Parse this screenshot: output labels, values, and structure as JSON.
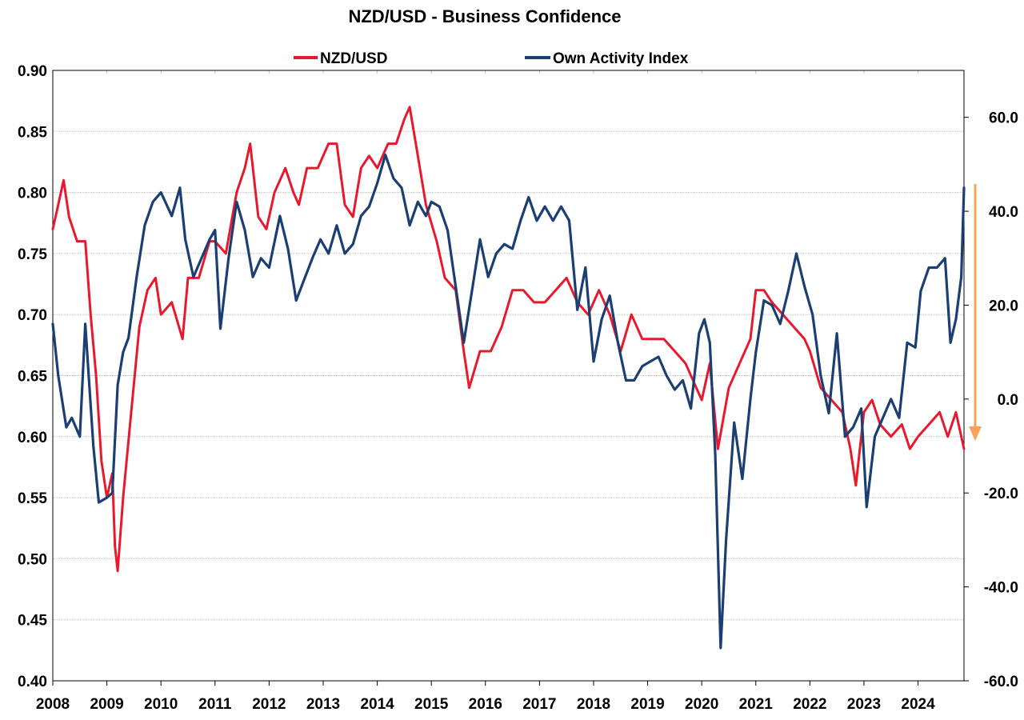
{
  "chart_data": {
    "type": "line",
    "title": "NZD/USD - Business Confidence",
    "xlabel": "",
    "ylabel_left": "",
    "ylabel_right": "",
    "x_range": [
      2008.0,
      2024.85
    ],
    "x_ticks": [
      "2008",
      "2009",
      "2010",
      "2011",
      "2012",
      "2013",
      "2014",
      "2015",
      "2016",
      "2017",
      "2018",
      "2019",
      "2020",
      "2021",
      "2022",
      "2023",
      "2024"
    ],
    "ylim_left": [
      0.4,
      0.9
    ],
    "yticks_left": [
      "0.90",
      "0.85",
      "0.80",
      "0.75",
      "0.70",
      "0.65",
      "0.60",
      "0.55",
      "0.50",
      "0.45",
      "0.40"
    ],
    "ylim_right": [
      -60.0,
      70.0
    ],
    "yticks_right": [
      "60.0",
      "40.0",
      "20.0",
      "0.0",
      "-20.0",
      "-40.0",
      "-60.0"
    ],
    "grid": true,
    "legend_position": "top",
    "legend": [
      "NZD/USD",
      "Own Activity Index"
    ],
    "annotation": "orange down arrow at right edge",
    "colors": {
      "nzd": "#e8192c",
      "activity": "#1b3f73",
      "arrow": "#f7a25b",
      "grid": "#bfbfbf"
    },
    "series": [
      {
        "name": "NZD/USD",
        "axis": "left",
        "x": [
          2008.0,
          2008.1,
          2008.2,
          2008.3,
          2008.45,
          2008.6,
          2008.7,
          2008.8,
          2008.9,
          2009.0,
          2009.1,
          2009.15,
          2009.2,
          2009.3,
          2009.45,
          2009.6,
          2009.75,
          2009.9,
          2010.0,
          2010.2,
          2010.4,
          2010.5,
          2010.7,
          2010.9,
          2011.0,
          2011.2,
          2011.4,
          2011.55,
          2011.65,
          2011.8,
          2011.95,
          2012.1,
          2012.3,
          2012.45,
          2012.55,
          2012.7,
          2012.9,
          2013.1,
          2013.25,
          2013.4,
          2013.55,
          2013.7,
          2013.85,
          2014.0,
          2014.2,
          2014.35,
          2014.5,
          2014.6,
          2014.75,
          2014.9,
          2015.1,
          2015.25,
          2015.45,
          2015.6,
          2015.7,
          2015.9,
          2016.1,
          2016.3,
          2016.5,
          2016.7,
          2016.9,
          2017.1,
          2017.3,
          2017.5,
          2017.7,
          2017.9,
          2018.1,
          2018.3,
          2018.5,
          2018.7,
          2018.9,
          2019.1,
          2019.3,
          2019.5,
          2019.7,
          2019.9,
          2020.0,
          2020.15,
          2020.3,
          2020.5,
          2020.7,
          2020.9,
          2021.0,
          2021.15,
          2021.3,
          2021.5,
          2021.7,
          2021.9,
          2022.0,
          2022.2,
          2022.4,
          2022.6,
          2022.75,
          2022.85,
          2023.0,
          2023.15,
          2023.3,
          2023.5,
          2023.7,
          2023.85,
          2024.0,
          2024.2,
          2024.4,
          2024.55,
          2024.7,
          2024.85
        ],
        "values": [
          0.77,
          0.79,
          0.81,
          0.78,
          0.76,
          0.76,
          0.7,
          0.65,
          0.58,
          0.55,
          0.57,
          0.51,
          0.49,
          0.55,
          0.62,
          0.69,
          0.72,
          0.73,
          0.7,
          0.71,
          0.68,
          0.73,
          0.73,
          0.76,
          0.76,
          0.75,
          0.8,
          0.82,
          0.84,
          0.78,
          0.77,
          0.8,
          0.82,
          0.8,
          0.79,
          0.82,
          0.82,
          0.84,
          0.84,
          0.79,
          0.78,
          0.82,
          0.83,
          0.82,
          0.84,
          0.84,
          0.86,
          0.87,
          0.83,
          0.79,
          0.76,
          0.73,
          0.72,
          0.67,
          0.64,
          0.67,
          0.67,
          0.69,
          0.72,
          0.72,
          0.71,
          0.71,
          0.72,
          0.73,
          0.71,
          0.7,
          0.72,
          0.7,
          0.67,
          0.7,
          0.68,
          0.68,
          0.68,
          0.67,
          0.66,
          0.64,
          0.63,
          0.66,
          0.59,
          0.64,
          0.66,
          0.68,
          0.72,
          0.72,
          0.71,
          0.7,
          0.69,
          0.68,
          0.67,
          0.64,
          0.63,
          0.62,
          0.59,
          0.56,
          0.62,
          0.63,
          0.61,
          0.6,
          0.61,
          0.59,
          0.6,
          0.61,
          0.62,
          0.6,
          0.62,
          0.59
        ]
      },
      {
        "name": "Own Activity Index",
        "axis": "right",
        "x": [
          2008.0,
          2008.1,
          2008.25,
          2008.35,
          2008.5,
          2008.6,
          2008.75,
          2008.85,
          2009.0,
          2009.1,
          2009.2,
          2009.3,
          2009.4,
          2009.55,
          2009.7,
          2009.85,
          2010.0,
          2010.2,
          2010.35,
          2010.45,
          2010.6,
          2010.75,
          2010.9,
          2011.0,
          2011.1,
          2011.25,
          2011.4,
          2011.55,
          2011.7,
          2011.85,
          2012.0,
          2012.2,
          2012.35,
          2012.5,
          2012.7,
          2012.8,
          2012.95,
          2013.1,
          2013.25,
          2013.4,
          2013.55,
          2013.7,
          2013.85,
          2014.0,
          2014.15,
          2014.3,
          2014.45,
          2014.6,
          2014.75,
          2014.9,
          2015.0,
          2015.15,
          2015.3,
          2015.45,
          2015.6,
          2015.75,
          2015.9,
          2016.05,
          2016.2,
          2016.35,
          2016.5,
          2016.65,
          2016.8,
          2016.95,
          2017.1,
          2017.25,
          2017.4,
          2017.55,
          2017.7,
          2017.85,
          2018.0,
          2018.15,
          2018.3,
          2018.45,
          2018.6,
          2018.75,
          2018.9,
          2019.05,
          2019.2,
          2019.35,
          2019.5,
          2019.65,
          2019.8,
          2019.95,
          2020.05,
          2020.15,
          2020.25,
          2020.35,
          2020.45,
          2020.6,
          2020.75,
          2020.9,
          2021.0,
          2021.15,
          2021.3,
          2021.45,
          2021.6,
          2021.75,
          2021.9,
          2022.05,
          2022.2,
          2022.35,
          2022.5,
          2022.65,
          2022.8,
          2022.95,
          2023.05,
          2023.2,
          2023.35,
          2023.5,
          2023.65,
          2023.8,
          2023.95,
          2024.05,
          2024.2,
          2024.35,
          2024.5,
          2024.6,
          2024.7,
          2024.8,
          2024.85
        ],
        "values": [
          16.0,
          5.0,
          -6.0,
          -4.0,
          -8.0,
          16.0,
          -10.0,
          -22.0,
          -21.0,
          -20.0,
          3.0,
          10.0,
          13.0,
          26.0,
          37.0,
          42.0,
          44.0,
          39.0,
          45.0,
          34.0,
          26.0,
          30.0,
          34.0,
          36.0,
          15.0,
          30.0,
          42.0,
          36.0,
          26.0,
          30.0,
          28.0,
          39.0,
          32.0,
          21.0,
          27.0,
          30.0,
          34.0,
          31.0,
          37.0,
          31.0,
          33.0,
          39.0,
          41.0,
          46.0,
          52.0,
          47.0,
          45.0,
          37.0,
          42.0,
          39.0,
          42.0,
          41.0,
          36.0,
          24.0,
          12.0,
          23.0,
          34.0,
          26.0,
          31.0,
          33.0,
          32.0,
          38.0,
          43.0,
          38.0,
          41.0,
          38.0,
          41.0,
          38.0,
          19.0,
          28.0,
          8.0,
          17.0,
          22.0,
          12.0,
          4.0,
          4.0,
          7.0,
          8.0,
          9.0,
          5.0,
          2.0,
          4.0,
          -2.0,
          14.0,
          17.0,
          12.0,
          -12.0,
          -53.0,
          -30.0,
          -5.0,
          -17.0,
          0.0,
          10.0,
          21.0,
          20.0,
          16.0,
          23.0,
          31.0,
          24.0,
          18.0,
          5.0,
          -3.0,
          14.0,
          -8.0,
          -6.0,
          -2.0,
          -23.0,
          -8.0,
          -4.0,
          0.0,
          -4.0,
          12.0,
          11.0,
          23.0,
          28.0,
          28.0,
          30.0,
          12.0,
          17.0,
          26.0,
          45.0
        ]
      }
    ]
  }
}
